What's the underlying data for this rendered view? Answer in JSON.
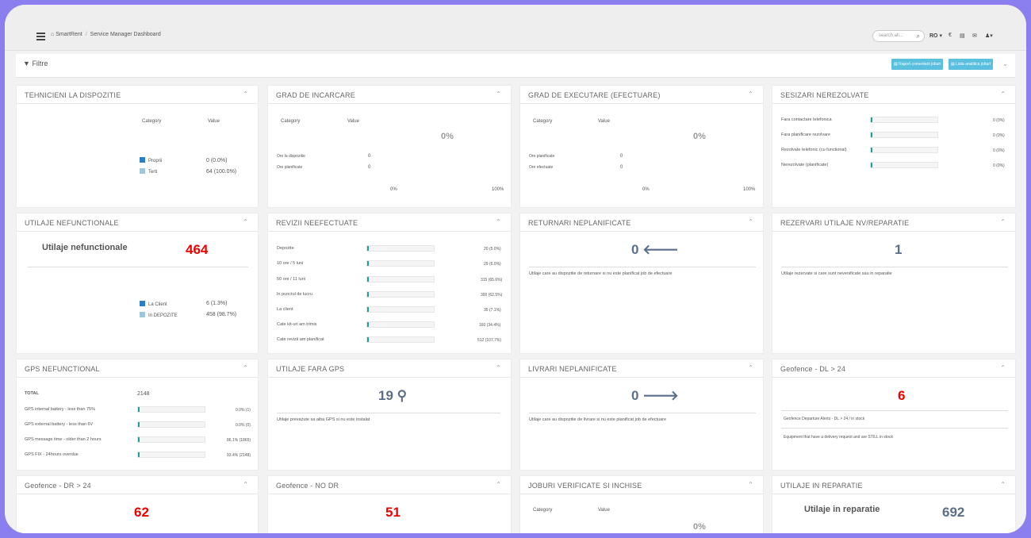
{
  "header": {
    "breadcrumb": [
      "SmartRent",
      "Service Manager Dashboard"
    ],
    "search_placeholder": "search all...",
    "language": "RO"
  },
  "filters": {
    "label": "Filtre",
    "report_button": "Raport comentarii joburi",
    "list_button": "Lista analitica joburi"
  },
  "cards": {
    "technicians": {
      "title": "TEHNICIENI LA DISPOZITIE",
      "col_category": "Category",
      "col_value": "Value",
      "rows": [
        {
          "label": "Proprii",
          "value": "0 (0.0%)"
        },
        {
          "label": "Terti",
          "value": "64 (100.0%)"
        }
      ]
    },
    "load": {
      "title": "GRAD DE INCARCARE",
      "col_category": "Category",
      "col_value": "Value",
      "percent": "0%",
      "rows": [
        {
          "label": "Ore la dispozitie",
          "value": "0"
        },
        {
          "label": "Ore planificate",
          "value": "0"
        }
      ],
      "axis_min": "0%",
      "axis_max": "100%"
    },
    "execution": {
      "title": "GRAD DE EXECUTARE (EFECTUARE)",
      "col_category": "Category",
      "col_value": "Value",
      "percent": "0%",
      "rows": [
        {
          "label": "Ore planificate",
          "value": "0"
        },
        {
          "label": "Ore efectuate",
          "value": "0"
        }
      ],
      "axis_min": "0%",
      "axis_max": "100%"
    },
    "unresolved": {
      "title": "SESIZARI NEREZOLVATE",
      "rows": [
        {
          "label": "Fara contactare telefonica",
          "value": "0 (0%)"
        },
        {
          "label": "Fara planificare rezolvare",
          "value": "0 (0%)"
        },
        {
          "label": "Rezolvate telefonic (cu functional)",
          "value": "0 (0%)"
        },
        {
          "label": "Nerezolvate (planificate)",
          "value": "0 (0%)"
        }
      ]
    },
    "nonfunctional": {
      "title": "UTILAJE NEFUNCTIONALE",
      "headline": "Utilaje nefunctionale",
      "value": "464",
      "rows": [
        {
          "label": "La Client",
          "value": "6 (1.3%)"
        },
        {
          "label": "In DEPOZITE",
          "value": "458 (98.7%)"
        }
      ]
    },
    "revisions": {
      "title": "REVIZII NEEFECTUATE",
      "rows": [
        {
          "label": "Depozite",
          "value": "20 (5.0%)"
        },
        {
          "label": "10 ore / 5 luni",
          "value": "29 (6.0%)"
        },
        {
          "label": "50 ore / 11 luni",
          "value": "315 (65.6%)"
        },
        {
          "label": "In punctul de lucru",
          "value": "300 (62.5%)"
        },
        {
          "label": "La client",
          "value": "35 (7.1%)"
        },
        {
          "label": "Cate kit-uri am trimis",
          "value": "160 (34.4%)"
        },
        {
          "label": "Cate revizii am planificat",
          "value": "512 (107.7%)"
        }
      ]
    },
    "returns": {
      "title": "RETURNARI NEPLANIFICATE",
      "value": "0",
      "description": "Utilaje care au dispozitie de returnare si nu este planificat job de efectuare"
    },
    "reservations": {
      "title": "REZERVARI UTILAJE NV/REPARATIE",
      "value": "1",
      "description": "Utilaje rezervate si care sunt nevenificate sau in reparatie"
    },
    "gps": {
      "title": "GPS NEFUNCTIONAL",
      "total_label": "TOTAL",
      "total_value": "2148",
      "rows": [
        {
          "label": "GPS internal battery - less than 75%",
          "value": "0.0% (1)"
        },
        {
          "label": "GPS external battery - less than 6V",
          "value": "0.0% (0)"
        },
        {
          "label": "GPS message time - older than 2 hours",
          "value": "86.1% (1865)"
        },
        {
          "label": "GPS FIX - 24hours overdue",
          "value": "93.4% (2148)"
        }
      ]
    },
    "nogps": {
      "title": "UTILAJE FARA GPS",
      "value": "19",
      "description": "Utilaje prevazute sa aiba GPS si nu este instalat"
    },
    "deliveries": {
      "title": "LIVRARI NEPLANIFICATE",
      "value": "0",
      "description": "Utilaje care au dispozitie de livrare si nu este planificat job de efectuare"
    },
    "geofence_dl": {
      "title": "Geofence - DL > 24",
      "value": "6",
      "line1": "Geofence Departure Alerts - DL > 24 / in stock",
      "line2": "Equipment that have a delivery request and are STILL in stock"
    },
    "geofence_dr": {
      "title": "Geofence - DR > 24",
      "value": "62"
    },
    "geofence_nodr": {
      "title": "Geofence - NO DR",
      "value": "51"
    },
    "jobs": {
      "title": "JOBURI VERIFICATE SI INCHISE",
      "col_category": "Category",
      "col_value": "Value",
      "percent": "0%"
    },
    "repair": {
      "title": "UTILAJE IN REPARATIE",
      "headline": "Utilaje in reparatie",
      "value": "692"
    }
  }
}
